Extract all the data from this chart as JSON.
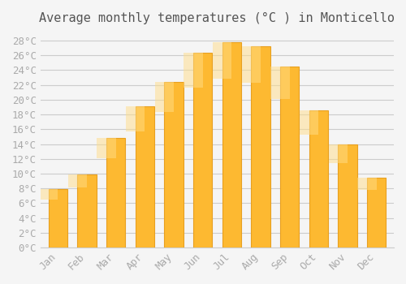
{
  "title": "Average monthly temperatures (°C ) in Monticello",
  "months": [
    "Jan",
    "Feb",
    "Mar",
    "Apr",
    "May",
    "Jun",
    "Jul",
    "Aug",
    "Sep",
    "Oct",
    "Nov",
    "Dec"
  ],
  "temperatures": [
    7.9,
    9.9,
    14.8,
    19.1,
    22.4,
    26.4,
    27.8,
    27.2,
    24.5,
    18.6,
    13.9,
    9.5
  ],
  "bar_color": "#FDB931",
  "bar_edge_color": "#E8A020",
  "background_color": "#F5F5F5",
  "grid_color": "#CCCCCC",
  "text_color": "#AAAAAA",
  "ylim": [
    0,
    29
  ],
  "ytick_step": 2,
  "title_fontsize": 11,
  "tick_fontsize": 9,
  "font_family": "monospace"
}
